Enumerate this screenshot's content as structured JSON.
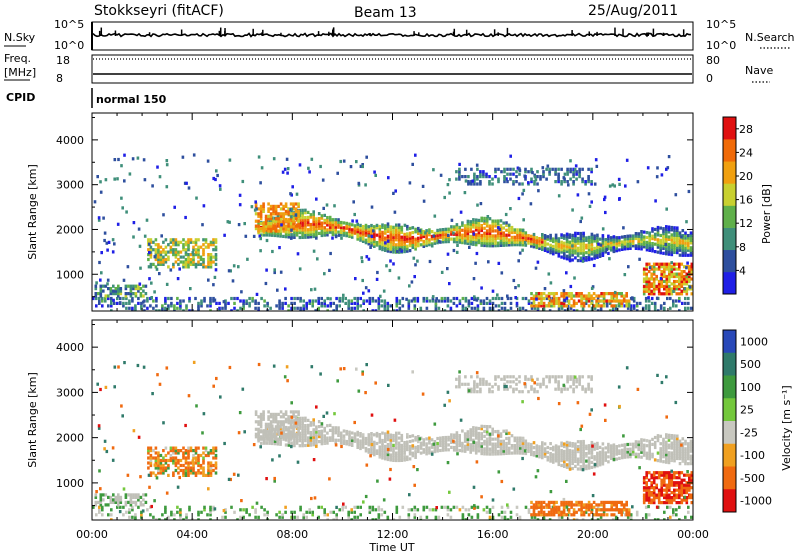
{
  "header": {
    "station": "Stokkseyri (fitACF)",
    "beam": "Beam 13",
    "date": "25/Aug/2011"
  },
  "status_panels": {
    "nsky_label": "N.Sky",
    "nsearch_label": "N.Search",
    "nsky_ticks": [
      "10^5",
      "10^0"
    ],
    "nsearch_ticks": [
      "10^5",
      "10^0"
    ],
    "freq_label_line1": "Freq.",
    "freq_label_line2": "[MHz]",
    "freq_ticks": [
      "18",
      "8"
    ],
    "nave_label": "Nave",
    "nave_ticks": [
      "80",
      "0"
    ],
    "cpid_label": "CPID",
    "cpid_value": "normal 150"
  },
  "colors": {
    "power_scale": [
      "#1f1fe6",
      "#2e4f9e",
      "#3f8f7a",
      "#5fb04a",
      "#c8d030",
      "#f0a010",
      "#f06a08",
      "#e01010"
    ],
    "velocity_scale": [
      "#2848b8",
      "#2f7a6a",
      "#3e9a3e",
      "#74c83c",
      "#c8c8c0",
      "#f0a020",
      "#f06a10",
      "#e01010"
    ],
    "ground_scatter": "#c0c0b8"
  },
  "chart_data": [
    {
      "type": "heatmap",
      "title": "",
      "xlabel": "Time UT",
      "ylabel": "Slant Range [km]",
      "x_ticks": [
        "00:00",
        "04:00",
        "08:00",
        "12:00",
        "16:00",
        "20:00",
        "00:00"
      ],
      "x_range_hours": [
        0,
        24
      ],
      "y_ticks": [
        1000,
        2000,
        3000,
        4000
      ],
      "ylim": [
        180,
        4600
      ],
      "colorbar": {
        "label": "Power [dB]",
        "ticks": [
          4,
          8,
          12,
          16,
          20,
          24,
          28
        ],
        "range": [
          0,
          30
        ]
      },
      "features": [
        {
          "name": "main band",
          "t_start": 6.6,
          "t_end": 24,
          "range_km_start": 2100,
          "range_km_end": 1650,
          "peak_db": 28
        },
        {
          "name": "morning patch",
          "t_start": 2.2,
          "t_end": 4.9,
          "range_km": 1500,
          "peak_db": 22
        },
        {
          "name": "near range echoes",
          "t_start": 0,
          "t_end": 24,
          "range_km": 300,
          "peak_db": 12
        },
        {
          "name": "late evening patch",
          "t_start": 22,
          "t_end": 24,
          "range_km": 900,
          "peak_db": 28
        }
      ]
    },
    {
      "type": "heatmap",
      "title": "",
      "xlabel": "Time UT",
      "ylabel": "Slant Range [km]",
      "x_ticks": [
        "00:00",
        "04:00",
        "08:00",
        "12:00",
        "16:00",
        "20:00",
        "00:00"
      ],
      "x_range_hours": [
        0,
        24
      ],
      "y_ticks": [
        1000,
        2000,
        3000,
        4000
      ],
      "ylim": [
        180,
        4600
      ],
      "colorbar": {
        "label": "Velocity [m s⁻¹]",
        "ticks": [
          1000,
          500,
          100,
          25,
          -25,
          -100,
          -500,
          -1000
        ]
      },
      "features": [
        {
          "name": "ground scatter band",
          "t_start": 6.6,
          "t_end": 24,
          "range_km_start": 2150,
          "range_km_end": 1700,
          "velocity_ms": 0
        },
        {
          "name": "morning patch",
          "t_start": 2.2,
          "t_end": 4.9,
          "range_km": 1500,
          "velocity_ms": -150
        },
        {
          "name": "evening flow",
          "t_start": 17.5,
          "t_end": 21.5,
          "range_km": 420,
          "velocity_ms": -250
        },
        {
          "name": "late evening patch",
          "t_start": 22,
          "t_end": 24,
          "range_km": 900,
          "velocity_ms": -600
        }
      ]
    }
  ]
}
